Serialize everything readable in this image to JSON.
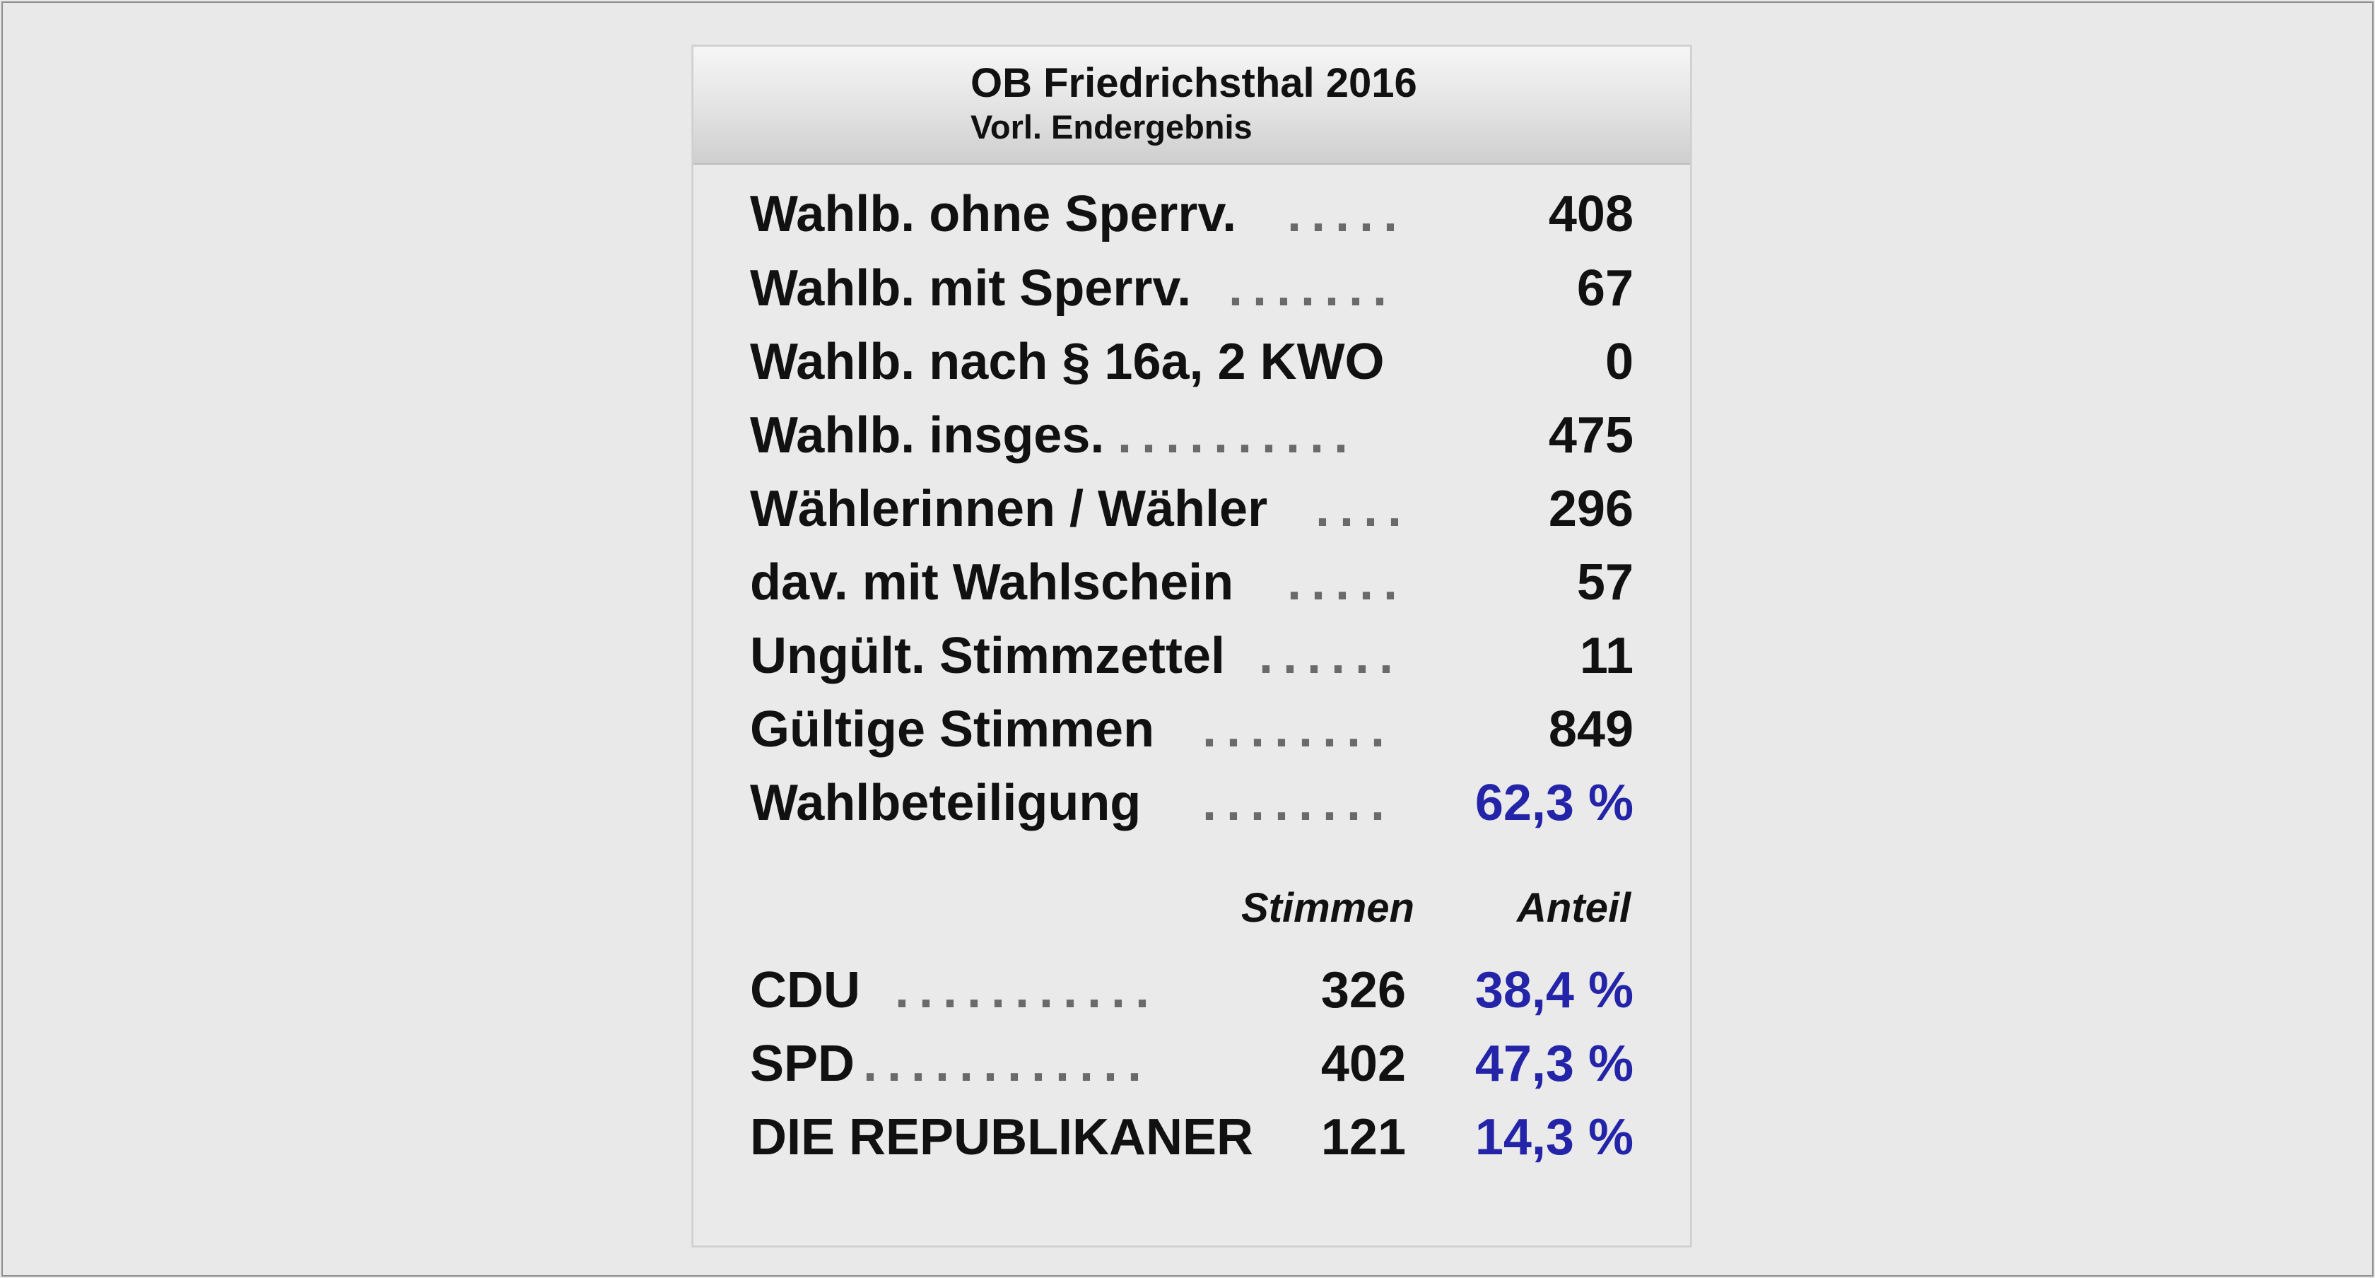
{
  "header": {
    "title": "OB Friedrichsthal 2016",
    "subtitle": "Vorl. Endergebnis"
  },
  "stats": [
    {
      "label": "Wahlb. ohne Sperrv.",
      "dots": ".....",
      "value": "408"
    },
    {
      "label": "Wahlb. mit Sperrv.",
      "dots": ".......",
      "value": "67"
    },
    {
      "label": "Wahlb. nach § 16a, 2 KWO",
      "dots": "",
      "value": "0"
    },
    {
      "label": "Wahlb. insges.",
      "dots": "..........",
      "value": "475"
    },
    {
      "label": "Wählerinnen / Wähler",
      "dots": "....",
      "value": "296"
    },
    {
      "label": "dav. mit Wahlschein",
      "dots": ".....",
      "value": "57"
    },
    {
      "label": "Ungült. Stimmzettel",
      "dots": "......",
      "value": "11"
    },
    {
      "label": "Gültige Stimmen",
      "dots": "........",
      "value": "849"
    },
    {
      "label": "Wahlbeteiligung",
      "dots": "........",
      "value": "62,3 %"
    }
  ],
  "columns": {
    "votes": "Stimmen",
    "share": "Anteil"
  },
  "results": [
    {
      "party": "CDU",
      "dots": "...........",
      "votes": "326",
      "share": "38,4 %"
    },
    {
      "party": "SPD",
      "dots": "............",
      "votes": "402",
      "share": "47,3 %"
    },
    {
      "party": "DIE REPUBLIKANER",
      "dots": "",
      "votes": "121",
      "share": "14,3 %"
    }
  ],
  "colors": {
    "percent": "#2424a8",
    "text": "#111111",
    "background": "#e9e9e9"
  }
}
